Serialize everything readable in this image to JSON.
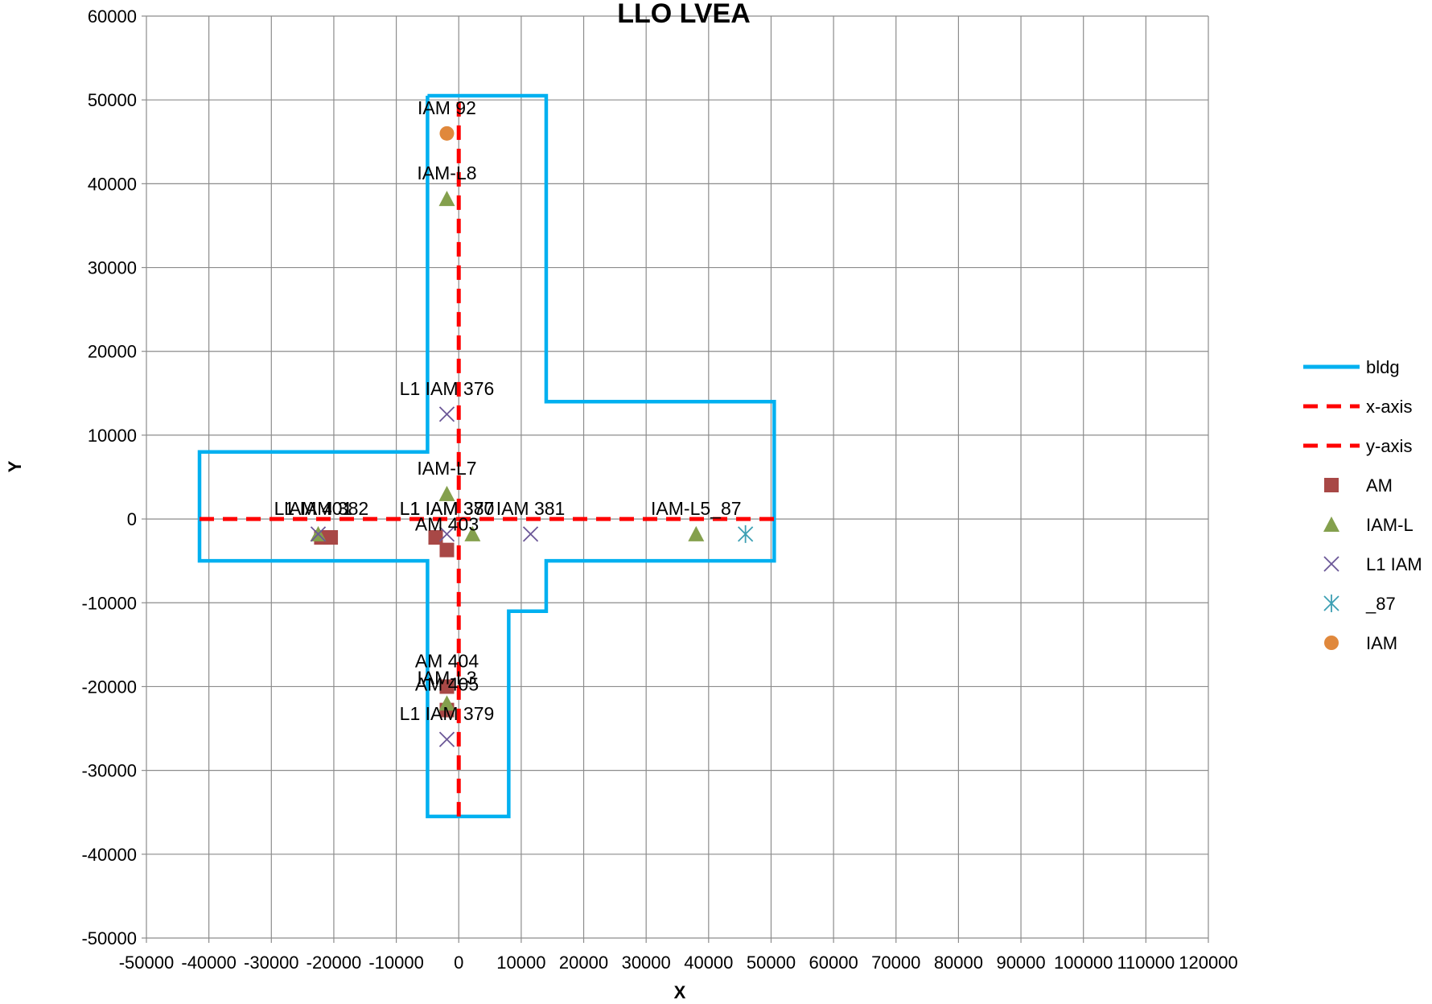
{
  "chart_data": {
    "type": "scatter",
    "title": "LLO LVEA",
    "xlabel": "X",
    "ylabel": "Y",
    "xlim": [
      -50000,
      120000
    ],
    "ylim": [
      -50000,
      60000
    ],
    "x_ticks": [
      -50000,
      -40000,
      -30000,
      -20000,
      -10000,
      0,
      10000,
      20000,
      30000,
      40000,
      50000,
      60000,
      70000,
      80000,
      90000,
      100000,
      110000,
      120000
    ],
    "y_ticks": [
      -50000,
      -40000,
      -30000,
      -20000,
      -10000,
      0,
      10000,
      20000,
      30000,
      40000,
      50000,
      60000
    ],
    "x_tick_labels": [
      "-50000",
      "-40000",
      "-30000",
      "-20000",
      "-10000",
      "0",
      "10000",
      "20000",
      "30000",
      "40000",
      "50000",
      "60000",
      "70000",
      "80000",
      "90000",
      "100000",
      "110000",
      "120000"
    ],
    "y_tick_labels": [
      "-50000",
      "-40000",
      "-30000",
      "-20000",
      "-10000",
      "0",
      "10000",
      "20000",
      "30000",
      "40000",
      "50000",
      "60000"
    ],
    "grid": true,
    "legend_position": "right",
    "series": [
      {
        "name": "bldg",
        "kind": "line",
        "color": "#00b0f0",
        "dash": false,
        "points": [
          [
            -5000,
            50500
          ],
          [
            14000,
            50500
          ],
          [
            14000,
            14000
          ],
          [
            50500,
            14000
          ],
          [
            50500,
            -5000
          ],
          [
            14000,
            -5000
          ],
          [
            14000,
            -11000
          ],
          [
            8000,
            -11000
          ],
          [
            8000,
            -35500
          ],
          [
            -5000,
            -35500
          ],
          [
            -5000,
            -5000
          ],
          [
            -41500,
            -5000
          ],
          [
            -41500,
            8000
          ],
          [
            -5000,
            8000
          ],
          [
            -5000,
            50500
          ]
        ]
      },
      {
        "name": "x-axis",
        "kind": "line",
        "color": "#ff0000",
        "dash": true,
        "points": [
          [
            -41500,
            0
          ],
          [
            50500,
            0
          ]
        ]
      },
      {
        "name": "y-axis",
        "kind": "line",
        "color": "#ff0000",
        "dash": true,
        "points": [
          [
            0,
            -35500
          ],
          [
            0,
            50500
          ]
        ]
      },
      {
        "name": "AM",
        "kind": "marker",
        "marker": "square",
        "color": "#a84846",
        "points": [
          [
            -20500,
            -2200
          ],
          [
            -22000,
            -2200
          ],
          [
            -3700,
            -2200
          ],
          [
            -1900,
            -3700
          ],
          [
            -1900,
            -20000
          ],
          [
            -1900,
            -22800
          ]
        ]
      },
      {
        "name": "IAM-L",
        "kind": "marker",
        "marker": "triangle",
        "color": "#84a04d",
        "points": [
          [
            -1900,
            38200
          ],
          [
            -1900,
            3000
          ],
          [
            -22500,
            -1800
          ],
          [
            2200,
            -1800
          ],
          [
            38000,
            -1800
          ],
          [
            -1900,
            -22000
          ]
        ]
      },
      {
        "name": "L1 IAM",
        "kind": "marker",
        "marker": "x",
        "color": "#6b5797",
        "points": [
          [
            -1900,
            12500
          ],
          [
            -1900,
            -1800
          ],
          [
            -22500,
            -1800
          ],
          [
            11500,
            -1800
          ],
          [
            -1900,
            -26300
          ]
        ]
      },
      {
        "name": "_87",
        "kind": "marker",
        "marker": "star",
        "color": "#3c9fb3",
        "points": [
          [
            45900,
            -1800
          ]
        ]
      },
      {
        "name": "IAM",
        "kind": "marker",
        "marker": "circle",
        "color": "#e0883c",
        "points": [
          [
            -1900,
            46000
          ]
        ]
      }
    ],
    "annotations": [
      {
        "text": "IAM 92",
        "x": -1900,
        "y": 46000
      },
      {
        "text": "IAM-L8",
        "x": -1900,
        "y": 38200
      },
      {
        "text": "L1 IAM 376",
        "x": -1900,
        "y": 12500
      },
      {
        "text": "IAM-L7",
        "x": -1900,
        "y": 3000
      },
      {
        "text": "L1 IAM 380",
        "x": -1900,
        "y": -1800
      },
      {
        "text": "IAM 381",
        "x": 11500,
        "y": -1800
      },
      {
        "text": "IAM-L5_87",
        "x": 38000,
        "y": -1800
      },
      {
        "text": "AM 403",
        "x": -1900,
        "y": -3700
      },
      {
        "text": "L1 IAM 382",
        "x": -22000,
        "y": -1800
      },
      {
        "text": "IAM 401",
        "x": -22500,
        "y": -1800
      },
      {
        "text": "L1 IAM 377",
        "x": -1900,
        "y": -1800
      },
      {
        "text": "AM 404",
        "x": -1900,
        "y": -20000
      },
      {
        "text": "IAM-L3",
        "x": -1900,
        "y": -22000
      },
      {
        "text": "AM 405",
        "x": -1900,
        "y": -22800
      },
      {
        "text": "L1 IAM 379",
        "x": -1900,
        "y": -26300
      }
    ]
  }
}
